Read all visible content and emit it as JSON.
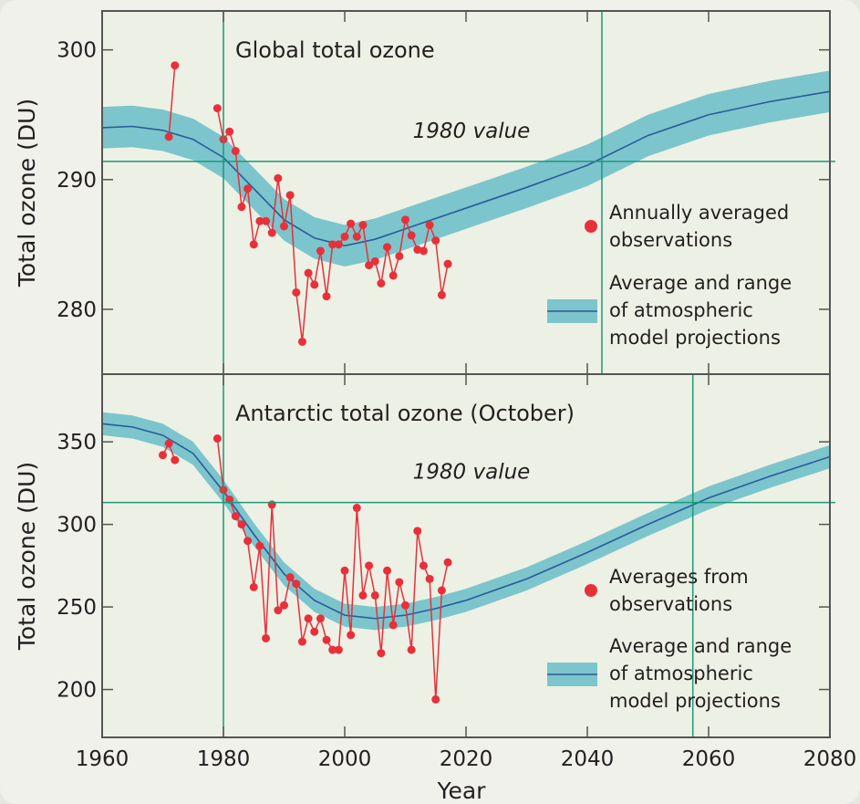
{
  "chart_data": [
    {
      "type": "line",
      "title": "Global total ozone",
      "ylabel": "Total ozone (DU)",
      "xlim": [
        1960,
        2080
      ],
      "xticks": [
        1960,
        1980,
        2000,
        2020,
        2040,
        2060,
        2080
      ],
      "ylim": [
        275,
        303
      ],
      "yticks": [
        280,
        290,
        300
      ],
      "reference_lines": {
        "label": "1980 value",
        "y": 291.4,
        "x": [
          1980,
          2042.4
        ],
        "color": "#1a9a7a"
      },
      "series": [
        {
          "name": "Annually averaged observations",
          "color": "#e8303a",
          "x": [
            1971,
            1972,
            1973,
            1974,
            1975,
            1976,
            1977,
            1978,
            1979,
            1980,
            1981,
            1982,
            1983,
            1984,
            1985,
            1986,
            1987,
            1988,
            1989,
            1990,
            1991,
            1992,
            1993,
            1994,
            1995,
            1996,
            1997,
            1998,
            1999,
            2000,
            2001,
            2002,
            2003,
            2004,
            2005,
            2006,
            2007,
            2008,
            2009,
            2010,
            2011,
            2012,
            2013,
            2014,
            2015,
            2016,
            2017
          ],
          "values": [
            293.3,
            298.8,
            null,
            null,
            null,
            null,
            null,
            null,
            295.5,
            293.1,
            293.7,
            292.2,
            287.9,
            289.3,
            285.0,
            286.8,
            286.8,
            285.9,
            290.1,
            286.4,
            288.8,
            281.3,
            277.5,
            282.8,
            281.9,
            284.5,
            281.0,
            285.0,
            285.0,
            285.6,
            286.6,
            285.6,
            286.5,
            283.4,
            283.7,
            282.0,
            284.8,
            282.6,
            284.1,
            286.9,
            285.7,
            284.6,
            284.5,
            286.5,
            285.3,
            281.1,
            283.5
          ]
        },
        {
          "name": "Average and range of atmospheric model projections",
          "color": "#2a5a9a",
          "band_color": "#7cc5cc",
          "x": [
            1960,
            1965,
            1970,
            1975,
            1980,
            1985,
            1990,
            1995,
            2000,
            2005,
            2010,
            2015,
            2020,
            2030,
            2040,
            2050,
            2060,
            2070,
            2080
          ],
          "values": [
            294.0,
            294.1,
            293.8,
            293.1,
            291.7,
            289.3,
            286.9,
            285.5,
            284.9,
            285.4,
            286.2,
            287.0,
            287.8,
            289.4,
            291.1,
            293.4,
            295.0,
            296.0,
            296.8
          ],
          "lower": [
            292.4,
            292.5,
            292.2,
            291.5,
            290.1,
            287.7,
            285.3,
            283.9,
            283.3,
            283.8,
            284.6,
            285.4,
            286.2,
            287.8,
            289.5,
            291.8,
            293.4,
            294.4,
            295.2
          ],
          "upper": [
            295.6,
            295.7,
            295.4,
            294.7,
            293.3,
            290.9,
            288.5,
            287.1,
            286.5,
            287.0,
            287.8,
            288.6,
            289.4,
            291.0,
            292.7,
            295.0,
            296.6,
            297.6,
            298.4
          ]
        }
      ]
    },
    {
      "type": "line",
      "title": "Antarctic total ozone (October)",
      "ylabel": "Total ozone (DU)",
      "xlabel": "Year",
      "xlim": [
        1960,
        2080
      ],
      "xticks": [
        1960,
        1980,
        2000,
        2020,
        2040,
        2060,
        2080
      ],
      "ylim": [
        171,
        391
      ],
      "yticks": [
        200,
        250,
        300,
        350
      ],
      "reference_lines": {
        "label": "1980 value",
        "y": 313.3,
        "x": [
          1980,
          2057.4
        ],
        "color": "#1a9a7a"
      },
      "series": [
        {
          "name": "Averages from observations",
          "color": "#e8303a",
          "x": [
            1970,
            1971,
            1972,
            1973,
            1974,
            1975,
            1976,
            1977,
            1978,
            1979,
            1980,
            1981,
            1982,
            1983,
            1984,
            1985,
            1986,
            1987,
            1988,
            1989,
            1990,
            1991,
            1992,
            1993,
            1994,
            1995,
            1996,
            1997,
            1998,
            1999,
            2000,
            2001,
            2002,
            2003,
            2004,
            2005,
            2006,
            2007,
            2008,
            2009,
            2010,
            2011,
            2012,
            2013,
            2014,
            2015,
            2016,
            2017
          ],
          "values": [
            342,
            349,
            339,
            null,
            null,
            null,
            null,
            null,
            null,
            352,
            321,
            315,
            305,
            300,
            290,
            262,
            287,
            231,
            312,
            248,
            251,
            268,
            264,
            229,
            243,
            235,
            243,
            230,
            224,
            224,
            272,
            233,
            310,
            257,
            275,
            257,
            222,
            272,
            239,
            265,
            251,
            224,
            296,
            275,
            267,
            194,
            260,
            277
          ]
        },
        {
          "name": "Average and range of atmospheric model projections",
          "color": "#2a5a9a",
          "band_color": "#7cc5cc",
          "x": [
            1960,
            1965,
            1970,
            1975,
            1980,
            1985,
            1990,
            1995,
            2000,
            2005,
            2010,
            2015,
            2020,
            2030,
            2040,
            2050,
            2060,
            2070,
            2080
          ],
          "values": [
            361,
            359,
            354,
            343,
            320,
            294,
            270,
            254,
            245,
            243,
            245,
            249,
            254,
            267,
            283,
            300,
            316,
            329,
            341
          ],
          "lower": [
            354,
            352,
            347,
            336,
            313,
            287,
            263,
            247,
            238,
            236,
            238,
            242,
            247,
            260,
            276,
            293,
            309,
            322,
            334
          ],
          "upper": [
            368,
            366,
            361,
            350,
            327,
            301,
            277,
            261,
            252,
            250,
            252,
            256,
            261,
            274,
            290,
            307,
            323,
            336,
            348
          ]
        }
      ]
    }
  ]
}
